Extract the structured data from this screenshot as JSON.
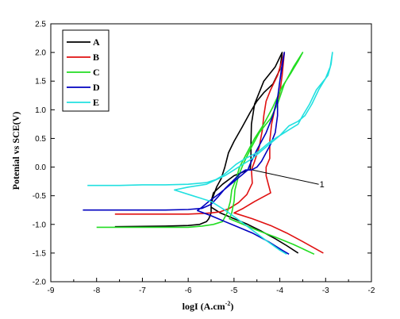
{
  "chart_data": {
    "type": "line",
    "xlabel": "logI (A.cm",
    "xlabel_sup": "-2",
    "xlabel_close": ")",
    "ylabel": "Potenial vs SCE(V)",
    "xlim": [
      -9,
      -2
    ],
    "ylim": [
      -2.0,
      2.5
    ],
    "xticks": [
      -9,
      -8,
      -7,
      -6,
      -5,
      -4,
      -3,
      -2
    ],
    "yticks": [
      -2.0,
      -1.5,
      -1.0,
      -0.5,
      0.0,
      0.5,
      1.0,
      1.5,
      2.0,
      2.5
    ],
    "grid": false,
    "legend_position": "top-left",
    "annotation": {
      "text": "1",
      "from": [
        -4.6,
        -0.05
      ],
      "to": [
        -3.15,
        -0.3
      ]
    },
    "series": [
      {
        "name": "A",
        "color": "#000000",
        "points": [
          [
            -7.6,
            -1.04
          ],
          [
            -6.5,
            -1.03
          ],
          [
            -6.0,
            -1.02
          ],
          [
            -5.75,
            -1.0
          ],
          [
            -5.6,
            -0.95
          ],
          [
            -5.55,
            -0.9
          ],
          [
            -5.5,
            -0.8
          ],
          [
            -5.5,
            -0.65
          ],
          [
            -5.45,
            -0.5
          ],
          [
            -5.38,
            -0.35
          ],
          [
            -5.28,
            -0.2
          ],
          [
            -5.2,
            0.0
          ],
          [
            -5.12,
            0.25
          ],
          [
            -5.0,
            0.45
          ],
          [
            -4.82,
            0.7
          ],
          [
            -4.65,
            0.95
          ],
          [
            -4.5,
            1.15
          ],
          [
            -4.35,
            1.3
          ],
          [
            -4.15,
            1.45
          ],
          [
            -4.0,
            1.7
          ],
          [
            -3.95,
            2.0
          ],
          [
            -4.1,
            1.75
          ],
          [
            -4.35,
            1.5
          ],
          [
            -4.55,
            1.1
          ],
          [
            -4.62,
            0.75
          ],
          [
            -4.63,
            0.4
          ],
          [
            -4.63,
            0.1
          ],
          [
            -4.65,
            -0.05
          ],
          [
            -4.7,
            -0.05
          ],
          [
            -5.0,
            -0.15
          ],
          [
            -5.25,
            -0.3
          ],
          [
            -5.45,
            -0.45
          ],
          [
            -5.5,
            -0.6
          ],
          [
            -5.5,
            -0.7
          ],
          [
            -5.3,
            -0.8
          ],
          [
            -5.0,
            -0.9
          ],
          [
            -4.7,
            -1.0
          ],
          [
            -4.4,
            -1.12
          ],
          [
            -4.1,
            -1.25
          ],
          [
            -3.85,
            -1.37
          ],
          [
            -3.6,
            -1.5
          ]
        ]
      },
      {
        "name": "B",
        "color": "#e01010",
        "points": [
          [
            -7.6,
            -0.82
          ],
          [
            -6.5,
            -0.82
          ],
          [
            -6.0,
            -0.82
          ],
          [
            -5.7,
            -0.81
          ],
          [
            -5.5,
            -0.8
          ],
          [
            -5.3,
            -0.78
          ],
          [
            -5.1,
            -0.72
          ],
          [
            -4.9,
            -0.62
          ],
          [
            -4.72,
            -0.48
          ],
          [
            -4.6,
            -0.28
          ],
          [
            -4.62,
            -0.05
          ],
          [
            -4.55,
            0.1
          ],
          [
            -4.45,
            0.35
          ],
          [
            -4.38,
            0.65
          ],
          [
            -4.35,
            0.9
          ],
          [
            -4.3,
            1.15
          ],
          [
            -4.2,
            1.35
          ],
          [
            -4.05,
            1.6
          ],
          [
            -3.92,
            1.95
          ],
          [
            -3.9,
            2.0
          ],
          [
            -3.95,
            1.6
          ],
          [
            -4.0,
            1.3
          ],
          [
            -4.1,
            1.05
          ],
          [
            -4.18,
            0.75
          ],
          [
            -4.22,
            0.45
          ],
          [
            -4.22,
            0.15
          ],
          [
            -4.3,
            0.0
          ],
          [
            -4.3,
            -0.15
          ],
          [
            -4.25,
            -0.3
          ],
          [
            -4.2,
            -0.45
          ],
          [
            -4.55,
            -0.6
          ],
          [
            -4.8,
            -0.72
          ],
          [
            -5.0,
            -0.8
          ],
          [
            -4.6,
            -0.9
          ],
          [
            -4.2,
            -1.02
          ],
          [
            -3.85,
            -1.15
          ],
          [
            -3.5,
            -1.3
          ],
          [
            -3.05,
            -1.5
          ]
        ]
      },
      {
        "name": "C",
        "color": "#22dd22",
        "points": [
          [
            -8.0,
            -1.05
          ],
          [
            -7.0,
            -1.05
          ],
          [
            -6.5,
            -1.05
          ],
          [
            -6.0,
            -1.05
          ],
          [
            -5.7,
            -1.03
          ],
          [
            -5.45,
            -1.0
          ],
          [
            -5.25,
            -0.95
          ],
          [
            -5.15,
            -0.8
          ],
          [
            -5.08,
            -0.6
          ],
          [
            -5.05,
            -0.4
          ],
          [
            -4.95,
            -0.2
          ],
          [
            -4.88,
            0.0
          ],
          [
            -4.75,
            0.2
          ],
          [
            -4.55,
            0.5
          ],
          [
            -4.35,
            0.75
          ],
          [
            -4.15,
            1.05
          ],
          [
            -3.95,
            1.4
          ],
          [
            -3.75,
            1.65
          ],
          [
            -3.6,
            1.85
          ],
          [
            -3.5,
            2.0
          ],
          [
            -3.7,
            1.75
          ],
          [
            -3.9,
            1.45
          ],
          [
            -4.05,
            1.1
          ],
          [
            -4.2,
            0.85
          ],
          [
            -4.45,
            0.6
          ],
          [
            -4.65,
            0.3
          ],
          [
            -4.8,
            0.05
          ],
          [
            -4.9,
            -0.15
          ],
          [
            -4.98,
            -0.4
          ],
          [
            -5.0,
            -0.6
          ],
          [
            -5.05,
            -0.8
          ],
          [
            -5.1,
            -0.9
          ],
          [
            -4.8,
            -1.0
          ],
          [
            -4.5,
            -1.1
          ],
          [
            -4.1,
            -1.22
          ],
          [
            -3.7,
            -1.35
          ],
          [
            -3.25,
            -1.52
          ]
        ]
      },
      {
        "name": "D",
        "color": "#0000c0",
        "points": [
          [
            -8.3,
            -0.75
          ],
          [
            -7.5,
            -0.75
          ],
          [
            -6.5,
            -0.75
          ],
          [
            -6.0,
            -0.74
          ],
          [
            -5.7,
            -0.72
          ],
          [
            -5.5,
            -0.65
          ],
          [
            -5.35,
            -0.52
          ],
          [
            -5.2,
            -0.38
          ],
          [
            -5.0,
            -0.22
          ],
          [
            -4.85,
            -0.1
          ],
          [
            -4.75,
            -0.05
          ],
          [
            -4.62,
            -0.05
          ],
          [
            -4.5,
            0.0
          ],
          [
            -4.4,
            0.1
          ],
          [
            -4.2,
            0.4
          ],
          [
            -4.1,
            0.6
          ],
          [
            -4.05,
            0.9
          ],
          [
            -4.05,
            1.2
          ],
          [
            -4.0,
            1.5
          ],
          [
            -3.95,
            1.75
          ],
          [
            -3.9,
            2.0
          ],
          [
            -3.95,
            1.8
          ],
          [
            -4.0,
            1.5
          ],
          [
            -4.05,
            1.2
          ],
          [
            -4.15,
            0.9
          ],
          [
            -4.3,
            0.6
          ],
          [
            -4.5,
            0.3
          ],
          [
            -4.65,
            0.05
          ],
          [
            -4.7,
            -0.05
          ],
          [
            -5.0,
            -0.25
          ],
          [
            -5.3,
            -0.45
          ],
          [
            -5.55,
            -0.6
          ],
          [
            -5.7,
            -0.7
          ],
          [
            -5.8,
            -0.76
          ],
          [
            -5.5,
            -0.85
          ],
          [
            -5.2,
            -0.95
          ],
          [
            -4.9,
            -1.05
          ],
          [
            -4.6,
            -1.15
          ],
          [
            -4.25,
            -1.3
          ],
          [
            -3.95,
            -1.45
          ],
          [
            -3.8,
            -1.52
          ]
        ]
      },
      {
        "name": "E",
        "color": "#22e0e0",
        "points": [
          [
            -8.2,
            -0.32
          ],
          [
            -7.5,
            -0.32
          ],
          [
            -7.0,
            -0.31
          ],
          [
            -6.5,
            -0.31
          ],
          [
            -6.0,
            -0.3
          ],
          [
            -5.6,
            -0.27
          ],
          [
            -5.4,
            -0.22
          ],
          [
            -5.25,
            -0.15
          ],
          [
            -5.1,
            -0.05
          ],
          [
            -4.95,
            0.05
          ],
          [
            -4.75,
            0.15
          ],
          [
            -4.5,
            0.25
          ],
          [
            -4.35,
            0.35
          ],
          [
            -4.2,
            0.45
          ],
          [
            -4.0,
            0.55
          ],
          [
            -3.8,
            0.65
          ],
          [
            -3.6,
            0.75
          ],
          [
            -3.5,
            0.9
          ],
          [
            -3.35,
            1.1
          ],
          [
            -3.2,
            1.35
          ],
          [
            -3.05,
            1.5
          ],
          [
            -2.95,
            1.6
          ],
          [
            -2.88,
            1.8
          ],
          [
            -2.85,
            2.0
          ],
          [
            -2.9,
            1.75
          ],
          [
            -3.0,
            1.55
          ],
          [
            -3.15,
            1.35
          ],
          [
            -3.3,
            1.1
          ],
          [
            -3.45,
            0.9
          ],
          [
            -3.6,
            0.8
          ],
          [
            -3.8,
            0.72
          ],
          [
            -4.0,
            0.55
          ],
          [
            -4.3,
            0.35
          ],
          [
            -4.6,
            0.15
          ],
          [
            -4.9,
            0.0
          ],
          [
            -5.2,
            -0.15
          ],
          [
            -5.6,
            -0.3
          ],
          [
            -6.0,
            -0.35
          ],
          [
            -6.3,
            -0.4
          ],
          [
            -5.9,
            -0.5
          ],
          [
            -5.5,
            -0.6
          ],
          [
            -5.2,
            -0.75
          ],
          [
            -4.9,
            -0.92
          ],
          [
            -4.6,
            -1.1
          ],
          [
            -4.3,
            -1.28
          ],
          [
            -4.0,
            -1.45
          ],
          [
            -3.85,
            -1.52
          ]
        ]
      }
    ]
  }
}
